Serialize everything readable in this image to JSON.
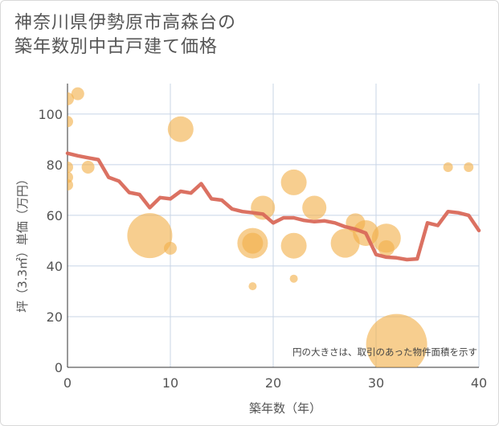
{
  "title_lines": [
    "神奈川県伊勢原市高森台の",
    "築年数別中古戸建て価格"
  ],
  "chart_data": {
    "type": "scatter+line",
    "xlabel": "築年数（年）",
    "ylabel": "坪（3.3㎡）単価（万円）",
    "note": "円の大きさは、取引のあった物件面積を示す",
    "xlim": [
      0,
      40
    ],
    "ylim": [
      0,
      112
    ],
    "xticks": [
      0,
      10,
      20,
      30,
      40
    ],
    "yticks": [
      0,
      20,
      40,
      60,
      80,
      100
    ],
    "grid": true,
    "colors": {
      "bubble": "#f2b04a",
      "line": "#d9695a",
      "grid": "#c8d4e6",
      "axis": "#333333"
    },
    "scatter": [
      {
        "x": 0,
        "y": 106,
        "size": 8
      },
      {
        "x": 1,
        "y": 108,
        "size": 8
      },
      {
        "x": 0,
        "y": 97,
        "size": 7
      },
      {
        "x": 0,
        "y": 79,
        "size": 7
      },
      {
        "x": 0,
        "y": 75,
        "size": 7
      },
      {
        "x": 0,
        "y": 72,
        "size": 7
      },
      {
        "x": 2,
        "y": 79,
        "size": 8
      },
      {
        "x": 8,
        "y": 52,
        "size": 28
      },
      {
        "x": 10,
        "y": 47,
        "size": 8
      },
      {
        "x": 11,
        "y": 94,
        "size": 16
      },
      {
        "x": 18,
        "y": 49,
        "size": 19
      },
      {
        "x": 18,
        "y": 49,
        "size": 13
      },
      {
        "x": 18,
        "y": 32,
        "size": 5
      },
      {
        "x": 19,
        "y": 63,
        "size": 15
      },
      {
        "x": 22,
        "y": 73,
        "size": 16
      },
      {
        "x": 22,
        "y": 48,
        "size": 16
      },
      {
        "x": 22,
        "y": 35,
        "size": 5
      },
      {
        "x": 24,
        "y": 63,
        "size": 15
      },
      {
        "x": 27,
        "y": 49,
        "size": 18
      },
      {
        "x": 28,
        "y": 57,
        "size": 12
      },
      {
        "x": 29,
        "y": 53,
        "size": 16
      },
      {
        "x": 31,
        "y": 51,
        "size": 18
      },
      {
        "x": 31,
        "y": 47,
        "size": 10
      },
      {
        "x": 32,
        "y": 9,
        "size": 38
      },
      {
        "x": 37,
        "y": 79,
        "size": 6
      },
      {
        "x": 39,
        "y": 79,
        "size": 6
      }
    ],
    "line": {
      "x": [
        0,
        1,
        2,
        3,
        4,
        5,
        6,
        7,
        8,
        9,
        10,
        11,
        12,
        13,
        14,
        15,
        16,
        17,
        18,
        19,
        20,
        21,
        22,
        23,
        24,
        25,
        26,
        27,
        28,
        29,
        30,
        31,
        32,
        33,
        34,
        35,
        36,
        37,
        38,
        39,
        40
      ],
      "y": [
        84.5,
        83.5,
        82.7,
        82,
        75,
        73.5,
        69,
        68.2,
        63,
        67,
        66.5,
        69.5,
        68.8,
        72.5,
        66.5,
        66,
        62.5,
        61.5,
        61,
        60.5,
        57,
        59,
        59,
        58,
        57.5,
        57.8,
        57,
        55.5,
        54.5,
        53,
        44.5,
        43.5,
        43.2,
        42.5,
        42.8,
        57,
        56,
        61.5,
        61,
        60,
        54
      ]
    }
  }
}
